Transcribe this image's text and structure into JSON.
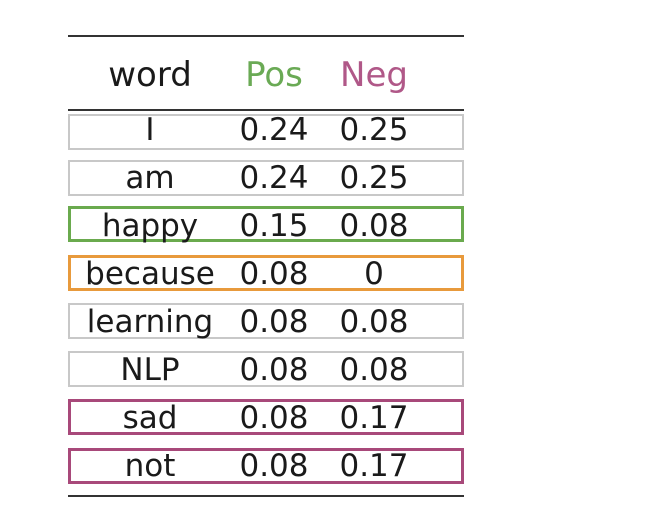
{
  "table": {
    "headers": {
      "word": "word",
      "pos": "Pos",
      "neg": "Neg"
    },
    "header_colors": {
      "pos": "#6aaa55",
      "neg": "#b05888"
    },
    "rows": [
      {
        "word": "I",
        "pos": "0.24",
        "neg": "0.25",
        "highlight": "none"
      },
      {
        "word": "am",
        "pos": "0.24",
        "neg": "0.25",
        "highlight": "none"
      },
      {
        "word": "happy",
        "pos": "0.15",
        "neg": "0.08",
        "highlight": "green"
      },
      {
        "word": "because",
        "pos": "0.08",
        "neg": "0",
        "highlight": "orange"
      },
      {
        "word": "learning",
        "pos": "0.08",
        "neg": "0.08",
        "highlight": "none"
      },
      {
        "word": "NLP",
        "pos": "0.08",
        "neg": "0.08",
        "highlight": "none"
      },
      {
        "word": "sad",
        "pos": "0.08",
        "neg": "0.17",
        "highlight": "purple"
      },
      {
        "word": "not",
        "pos": "0.08",
        "neg": "0.17",
        "highlight": "purple"
      }
    ],
    "highlight_colors": {
      "none": "#c8c8c8",
      "green": "#6aaa4e",
      "orange": "#e89a3c",
      "purple": "#a8497a"
    }
  }
}
